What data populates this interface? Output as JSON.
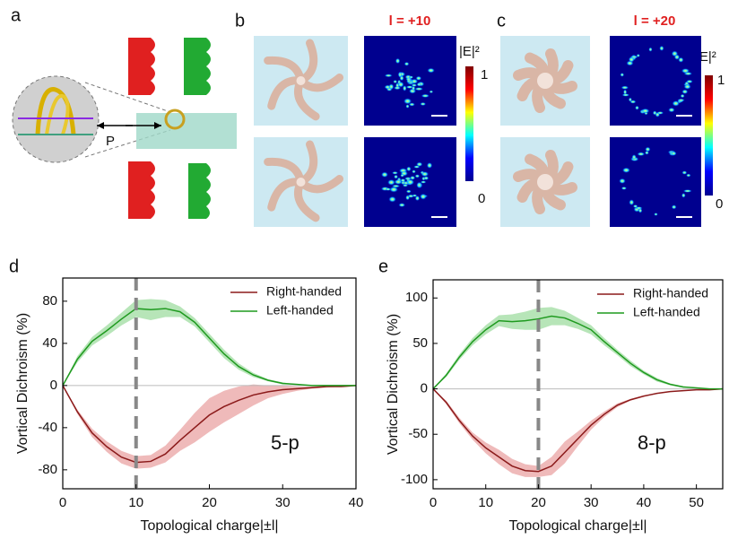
{
  "figure": {
    "panel_a": {
      "label": "a",
      "p_label": "P"
    },
    "panel_b": {
      "label": "b",
      "title": "l = +10",
      "colorbar_label": "|E|²",
      "colorbar_max": "1",
      "colorbar_min": "0"
    },
    "panel_c": {
      "label": "c",
      "title": "l = +20",
      "colorbar_label": "|E|²",
      "colorbar_max": "1",
      "colorbar_min": "0"
    }
  },
  "chart_data": [
    {
      "type": "line",
      "panel": "d",
      "annotation": "5-p",
      "xlabel": "Topological charge|±l|",
      "ylabel": "Vortical Dichroism (%)",
      "x": [
        0,
        2,
        4,
        6,
        8,
        10,
        12,
        14,
        16,
        18,
        20,
        22,
        24,
        26,
        28,
        30,
        32,
        34,
        36,
        38,
        40
      ],
      "xlim": [
        0,
        40
      ],
      "xticks": [
        0,
        10,
        20,
        30,
        40
      ],
      "ylim": [
        -98,
        102
      ],
      "yticks": [
        -80,
        -40,
        0,
        40,
        80
      ],
      "reference_x": 10,
      "legend": "upper right",
      "series": [
        {
          "name": "Right-handed",
          "color": "#8b1a1a",
          "band_color": "#e9a3a3",
          "values": [
            0,
            -25,
            -45,
            -58,
            -68,
            -73,
            -72,
            -65,
            -52,
            -40,
            -28,
            -20,
            -14,
            -9,
            -6,
            -4,
            -3,
            -2,
            -1,
            -1,
            0
          ],
          "error": [
            0,
            2,
            4,
            5,
            6,
            6,
            6,
            8,
            10,
            14,
            16,
            15,
            13,
            10,
            6,
            4,
            2,
            1,
            1,
            0,
            0
          ]
        },
        {
          "name": "Left-handed",
          "color": "#1f9a1f",
          "band_color": "#9fdca0",
          "values": [
            0,
            25,
            42,
            52,
            63,
            73,
            72,
            73,
            70,
            60,
            45,
            30,
            18,
            10,
            5,
            2,
            1,
            0,
            0,
            0,
            0
          ],
          "error": [
            0,
            3,
            4,
            5,
            6,
            8,
            10,
            8,
            5,
            4,
            4,
            4,
            3,
            2,
            1,
            1,
            0,
            0,
            0,
            0,
            0
          ]
        }
      ]
    },
    {
      "type": "line",
      "panel": "e",
      "annotation": "8-p",
      "xlabel": "Topological charge|±l|",
      "ylabel": "Vortical Dichroism (%)",
      "x": [
        0,
        2.5,
        5,
        7.5,
        10,
        12.5,
        15,
        17.5,
        20,
        22.5,
        25,
        27.5,
        30,
        32.5,
        35,
        37.5,
        40,
        42.5,
        45,
        47.5,
        50,
        52.5,
        55
      ],
      "xlim": [
        0,
        55
      ],
      "xticks": [
        0,
        10,
        20,
        30,
        40,
        50
      ],
      "ylim": [
        -110,
        120
      ],
      "yticks": [
        -100,
        -50,
        0,
        50,
        100
      ],
      "reference_x": 20,
      "legend": "upper right",
      "series": [
        {
          "name": "Right-handed",
          "color": "#8b1a1a",
          "band_color": "#e9a3a3",
          "values": [
            0,
            -15,
            -35,
            -52,
            -65,
            -75,
            -85,
            -90,
            -91,
            -85,
            -70,
            -55,
            -40,
            -28,
            -18,
            -12,
            -8,
            -5,
            -3,
            -2,
            -1,
            -1,
            0
          ],
          "error": [
            0,
            2,
            3,
            4,
            6,
            8,
            8,
            7,
            6,
            10,
            12,
            8,
            5,
            3,
            2,
            1,
            1,
            0,
            0,
            0,
            0,
            0,
            0
          ]
        },
        {
          "name": "Left-handed",
          "color": "#1f9a1f",
          "band_color": "#9fdca0",
          "values": [
            0,
            15,
            35,
            52,
            65,
            75,
            74,
            75,
            77,
            80,
            78,
            72,
            65,
            52,
            40,
            28,
            18,
            10,
            5,
            2,
            1,
            0,
            0
          ],
          "error": [
            0,
            2,
            3,
            4,
            5,
            6,
            8,
            10,
            12,
            10,
            8,
            6,
            5,
            4,
            3,
            3,
            2,
            2,
            1,
            1,
            0,
            0,
            0
          ]
        }
      ]
    }
  ]
}
